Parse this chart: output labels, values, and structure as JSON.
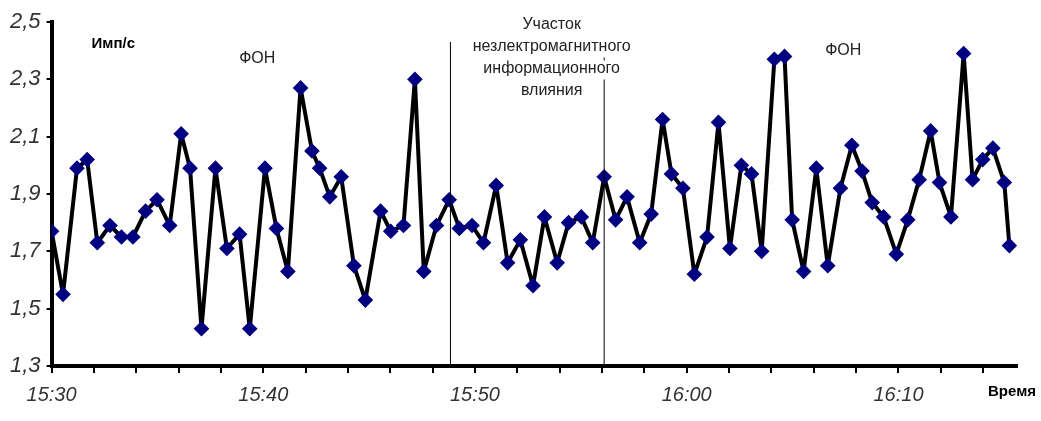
{
  "chart_data": {
    "type": "line",
    "xlabel": "Время",
    "ylabel": "Имп/с",
    "x": [
      15.5,
      15.509,
      15.52,
      15.528,
      15.536,
      15.546,
      15.555,
      15.564,
      15.574,
      15.583,
      15.593,
      15.602,
      15.609,
      15.618,
      15.629,
      15.638,
      15.648,
      15.656,
      15.668,
      15.677,
      15.686,
      15.696,
      15.705,
      15.711,
      15.719,
      15.728,
      15.738,
      15.747,
      15.759,
      15.767,
      15.777,
      15.786,
      15.793,
      15.803,
      15.813,
      15.821,
      15.831,
      15.84,
      15.85,
      15.859,
      15.869,
      15.879,
      15.888,
      15.898,
      15.907,
      15.917,
      15.926,
      15.935,
      15.944,
      15.953,
      15.963,
      15.972,
      15.981,
      15.988,
      15.997,
      16.006,
      16.016,
      16.025,
      16.034,
      16.043,
      16.051,
      16.059,
      16.069,
      16.077,
      16.083,
      16.092,
      16.102,
      16.111,
      16.121,
      16.13,
      16.138,
      16.146,
      16.155,
      16.165,
      16.174,
      16.183,
      16.192,
      16.199,
      16.208,
      16.218,
      16.225,
      16.233,
      16.241,
      16.25,
      16.254
    ],
    "series": [
      {
        "color": "#000080",
        "values": [
          1.77,
          1.55,
          1.99,
          2.02,
          1.73,
          1.79,
          1.75,
          1.75,
          1.84,
          1.88,
          1.79,
          2.11,
          1.99,
          1.43,
          1.99,
          1.71,
          1.76,
          1.43,
          1.99,
          1.78,
          1.63,
          2.27,
          2.05,
          1.99,
          1.89,
          1.96,
          1.65,
          1.53,
          1.84,
          1.77,
          1.79,
          2.3,
          1.63,
          1.79,
          1.88,
          1.78,
          1.79,
          1.73,
          1.93,
          1.66,
          1.74,
          1.58,
          1.82,
          1.66,
          1.8,
          1.82,
          1.73,
          1.96,
          1.81,
          1.89,
          1.73,
          1.83,
          2.16,
          1.97,
          1.92,
          1.62,
          1.75,
          2.15,
          1.71,
          2.0,
          1.97,
          1.7,
          2.37,
          2.38,
          1.81,
          1.63,
          1.99,
          1.65,
          1.92,
          2.07,
          1.98,
          1.87,
          1.82,
          1.69,
          1.81,
          1.95,
          2.12,
          1.94,
          1.82,
          2.39,
          1.95,
          2.02,
          2.06,
          1.94,
          1.72
        ]
      }
    ],
    "xlim": [
      15.5,
      16.26
    ],
    "xticks": [
      {
        "value": 15.5,
        "label": "15:30"
      },
      {
        "value": 15.5333,
        "label": null
      },
      {
        "value": 15.5667,
        "label": null
      },
      {
        "value": 15.6,
        "label": null
      },
      {
        "value": 15.6333,
        "label": null
      },
      {
        "value": 15.6667,
        "label": "15:40"
      },
      {
        "value": 15.7,
        "label": null
      },
      {
        "value": 15.7333,
        "label": null
      },
      {
        "value": 15.7667,
        "label": null
      },
      {
        "value": 15.8,
        "label": null
      },
      {
        "value": 15.8333,
        "label": "15:50"
      },
      {
        "value": 15.8667,
        "label": null
      },
      {
        "value": 15.9,
        "label": null
      },
      {
        "value": 15.9333,
        "label": null
      },
      {
        "value": 15.9667,
        "label": null
      },
      {
        "value": 16.0,
        "label": "16:00"
      },
      {
        "value": 16.0333,
        "label": null
      },
      {
        "value": 16.0667,
        "label": null
      },
      {
        "value": 16.1,
        "label": null
      },
      {
        "value": 16.1333,
        "label": null
      },
      {
        "value": 16.1667,
        "label": "16:10"
      },
      {
        "value": 16.2,
        "label": null
      },
      {
        "value": 16.2333,
        "label": null
      }
    ],
    "ylim": [
      1.3,
      2.5
    ],
    "yticks": [
      {
        "value": 1.3,
        "label": "1,3"
      },
      {
        "value": 1.5,
        "label": "1,5"
      },
      {
        "value": 1.7,
        "label": "1,7"
      },
      {
        "value": 1.9,
        "label": "1,9"
      },
      {
        "value": 2.1,
        "label": "2,1"
      },
      {
        "value": 2.3,
        "label": "2,3"
      },
      {
        "value": 2.5,
        "label": "2,5"
      }
    ],
    "ref_lines": [
      {
        "axis": "x",
        "value": 15.814
      },
      {
        "axis": "x",
        "value": 15.935
      }
    ],
    "annotations": [
      "ФОН",
      "Участок\nнезлектромагнитного\nинформационного\nвлияния",
      "ФОН"
    ],
    "marker": "diamond",
    "line_style": "solid",
    "grid": false,
    "legend": false
  }
}
